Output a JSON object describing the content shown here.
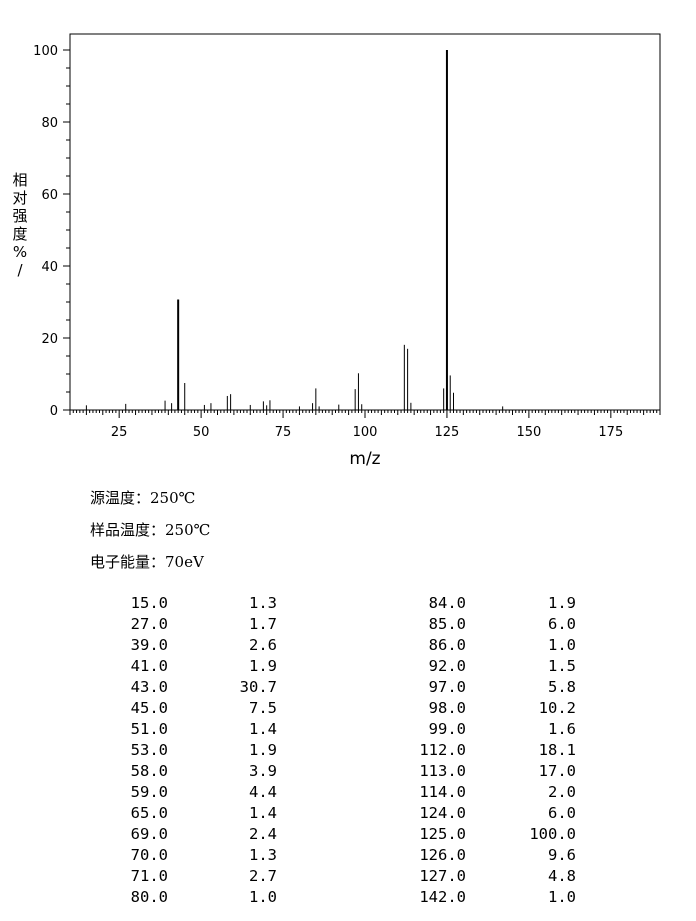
{
  "chart_data": {
    "type": "bar",
    "xlabel": "m/z",
    "ylabel": "相对强度%/",
    "xlim": [
      10,
      190
    ],
    "ylim": [
      0,
      100
    ],
    "xticks": [
      25,
      50,
      75,
      100,
      125,
      150,
      175
    ],
    "yticks": [
      0,
      20,
      40,
      60,
      80,
      100
    ],
    "x": [
      15,
      27,
      39,
      41,
      43,
      45,
      51,
      53,
      58,
      59,
      65,
      69,
      70,
      71,
      80,
      84,
      85,
      86,
      92,
      97,
      98,
      99,
      112,
      113,
      114,
      124,
      125,
      126,
      127,
      142
    ],
    "values": [
      1.3,
      1.7,
      2.6,
      1.9,
      30.7,
      7.5,
      1.4,
      1.9,
      3.9,
      4.4,
      1.4,
      2.4,
      1.3,
      2.7,
      1.0,
      1.9,
      6.0,
      1.0,
      1.5,
      5.8,
      10.2,
      1.6,
      18.1,
      17.0,
      2.0,
      6.0,
      100.0,
      9.6,
      4.8,
      1.0
    ]
  },
  "conditions": {
    "source_temp_label": "源温度：",
    "source_temp_value": "250℃",
    "sample_temp_label": "样品温度：",
    "sample_temp_value": "250℃",
    "electron_energy_label": "电子能量：",
    "electron_energy_value": "70eV"
  },
  "table": {
    "rows": [
      [
        "15.0",
        "1.3",
        "84.0",
        "1.9"
      ],
      [
        "27.0",
        "1.7",
        "85.0",
        "6.0"
      ],
      [
        "39.0",
        "2.6",
        "86.0",
        "1.0"
      ],
      [
        "41.0",
        "1.9",
        "92.0",
        "1.5"
      ],
      [
        "43.0",
        "30.7",
        "97.0",
        "5.8"
      ],
      [
        "45.0",
        "7.5",
        "98.0",
        "10.2"
      ],
      [
        "51.0",
        "1.4",
        "99.0",
        "1.6"
      ],
      [
        "53.0",
        "1.9",
        "112.0",
        "18.1"
      ],
      [
        "58.0",
        "3.9",
        "113.0",
        "17.0"
      ],
      [
        "59.0",
        "4.4",
        "114.0",
        "2.0"
      ],
      [
        "65.0",
        "1.4",
        "124.0",
        "6.0"
      ],
      [
        "69.0",
        "2.4",
        "125.0",
        "100.0"
      ],
      [
        "70.0",
        "1.3",
        "126.0",
        "9.6"
      ],
      [
        "71.0",
        "2.7",
        "127.0",
        "4.8"
      ],
      [
        "80.0",
        "1.0",
        "142.0",
        "1.0"
      ]
    ]
  }
}
